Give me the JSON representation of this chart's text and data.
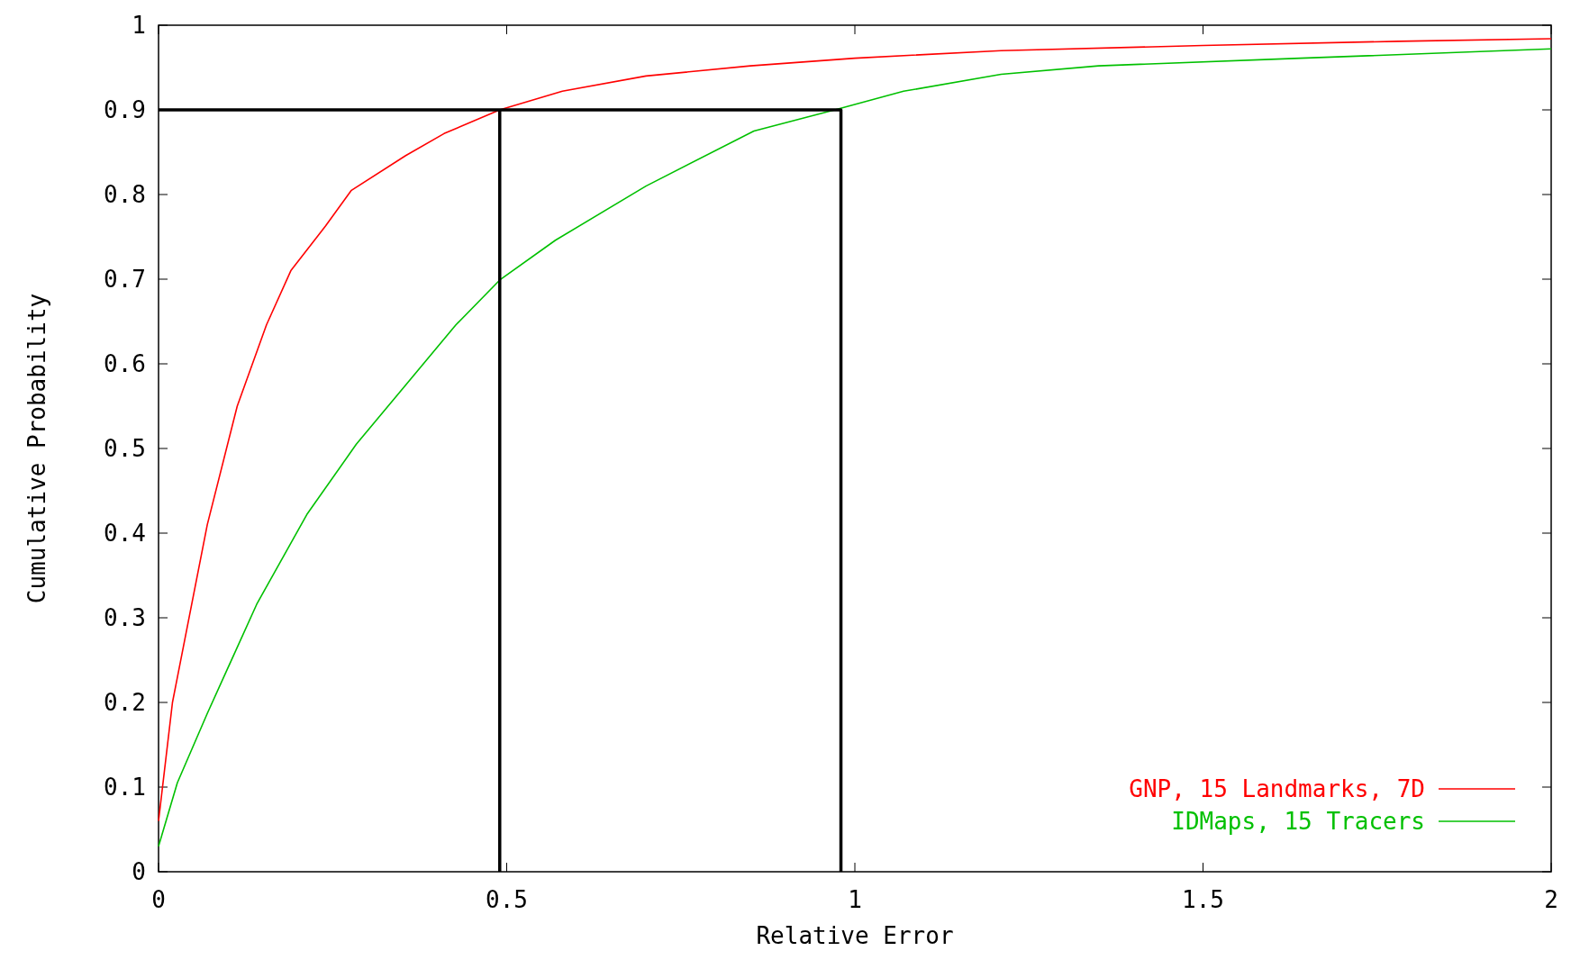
{
  "chart_data": {
    "type": "line",
    "xlabel": "Relative Error",
    "ylabel": "Cumulative Probability",
    "xlim": [
      0,
      2
    ],
    "ylim": [
      0,
      1
    ],
    "xticks": [
      0,
      0.5,
      1,
      1.5,
      2
    ],
    "yticks": [
      0,
      0.1,
      0.2,
      0.3,
      0.4,
      0.5,
      0.6,
      0.7,
      0.8,
      0.9,
      1
    ],
    "legend": "bottom right",
    "grid": false,
    "series": [
      {
        "name": "GNP, 15 Landmarks, 7D",
        "color": "#ff0000",
        "x": [
          0,
          0.02,
          0.07,
          0.113,
          0.155,
          0.19,
          0.24,
          0.277,
          0.355,
          0.41,
          0.49,
          0.58,
          0.7,
          0.85,
          1.0,
          1.21,
          1.5,
          1.78,
          2
        ],
        "values": [
          0.06,
          0.2,
          0.41,
          0.55,
          0.646,
          0.71,
          0.763,
          0.805,
          0.846,
          0.872,
          0.9,
          0.922,
          0.94,
          0.952,
          0.961,
          0.97,
          0.976,
          0.981,
          0.984
        ]
      },
      {
        "name": "IDMaps, 15 Tracers",
        "color": "#00c000",
        "x": [
          0,
          0.027,
          0.07,
          0.141,
          0.213,
          0.284,
          0.355,
          0.427,
          0.49,
          0.57,
          0.7,
          0.855,
          0.976,
          1.07,
          1.21,
          1.35,
          1.64,
          2
        ],
        "values": [
          0.03,
          0.105,
          0.187,
          0.316,
          0.422,
          0.505,
          0.575,
          0.646,
          0.699,
          0.746,
          0.81,
          0.875,
          0.901,
          0.922,
          0.942,
          0.952,
          0.961,
          0.972
        ]
      },
      {
        "color": "#000000",
        "x": [
          0,
          0.98,
          0.98
        ],
        "values": [
          0.9,
          0.9,
          0
        ]
      },
      {
        "color": "#000000",
        "x": [
          0.49,
          0.49
        ],
        "values": [
          0,
          0.9
        ]
      }
    ]
  }
}
